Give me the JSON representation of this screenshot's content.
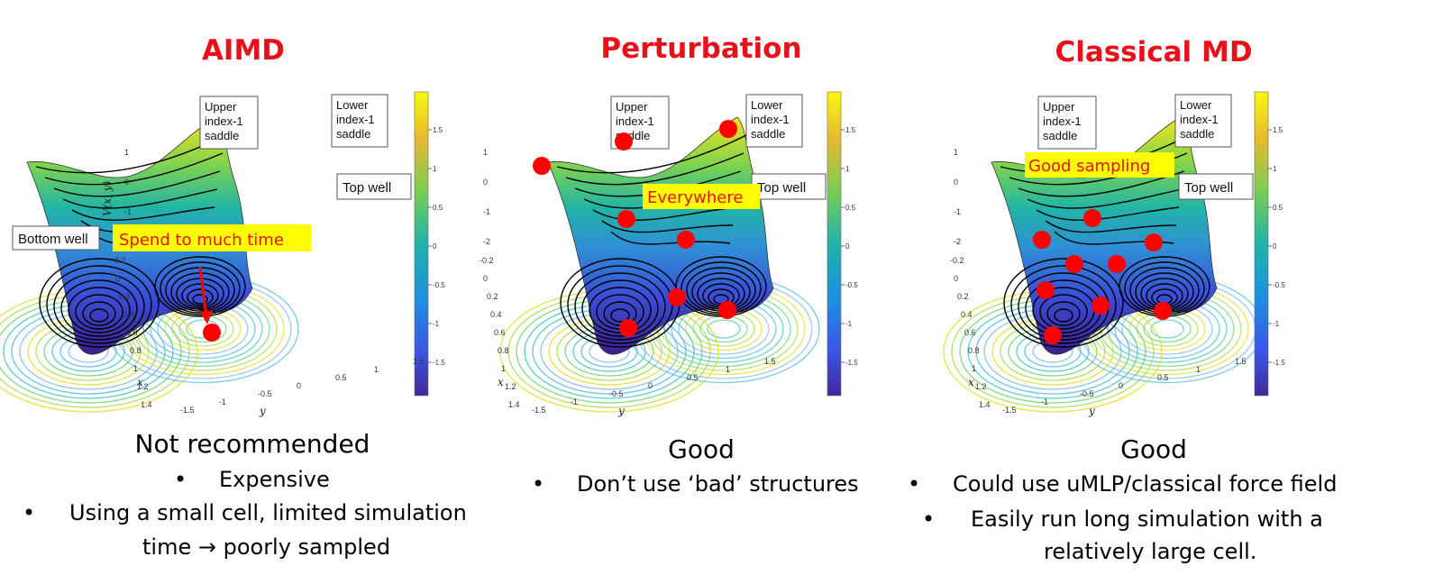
{
  "panels": [
    {
      "title": "AIMD",
      "boxes": {
        "upper": [
          "Upper",
          "index-1",
          "saddle"
        ],
        "lower": [
          "Lower",
          "index-1",
          "saddle"
        ],
        "top": "Top well",
        "bottom": "Bottom well"
      },
      "highlight": "Spend to much time",
      "verdict": "Not recommended",
      "bullets": [
        "Expensive",
        "Using a small cell, limited simulation",
        "time → poorly sampled"
      ]
    },
    {
      "title": "Perturbation",
      "boxes": {
        "upper": [
          "Upper",
          "index-1",
          "saddle"
        ],
        "lower": [
          "Lower",
          "index-1",
          "saddle"
        ],
        "top": "Top well"
      },
      "highlight": "Everywhere",
      "verdict": "Good",
      "bullets": [
        "Don’t use ‘bad’ structures"
      ]
    },
    {
      "title": "Classical MD",
      "boxes": {
        "upper": [
          "Upper",
          "index-1",
          "saddle"
        ],
        "lower": [
          "Lower",
          "index-1",
          "saddle"
        ],
        "top": "Top well"
      },
      "highlight": "Good sampling",
      "verdict": "Good",
      "bullets": [
        "Could use uMLP/classical force field",
        "Easily run long simulation with a",
        "relatively large cell."
      ]
    }
  ],
  "axes": {
    "colorbar_ticks": [
      "1.5",
      "1",
      "0.5",
      "0",
      "-0.5",
      "-1",
      "-1.5"
    ],
    "x_ticks": [
      "-0.2",
      "0",
      "0.2",
      "0.4",
      "0.6",
      "0.8",
      "1",
      "1.2",
      "1.4"
    ],
    "y_ticks": [
      "-1.5",
      "-1",
      "-0.5",
      "0",
      "0.5",
      "1",
      "1.5"
    ],
    "z_ticks": [
      "1",
      "0",
      "-1",
      "-2"
    ],
    "x_label": "x",
    "y_label": "y",
    "z_label": "V(x, y)"
  },
  "colors": {
    "title": "#e8101a",
    "marker": "#ff0000",
    "highlight_bg": "#ffff00"
  }
}
